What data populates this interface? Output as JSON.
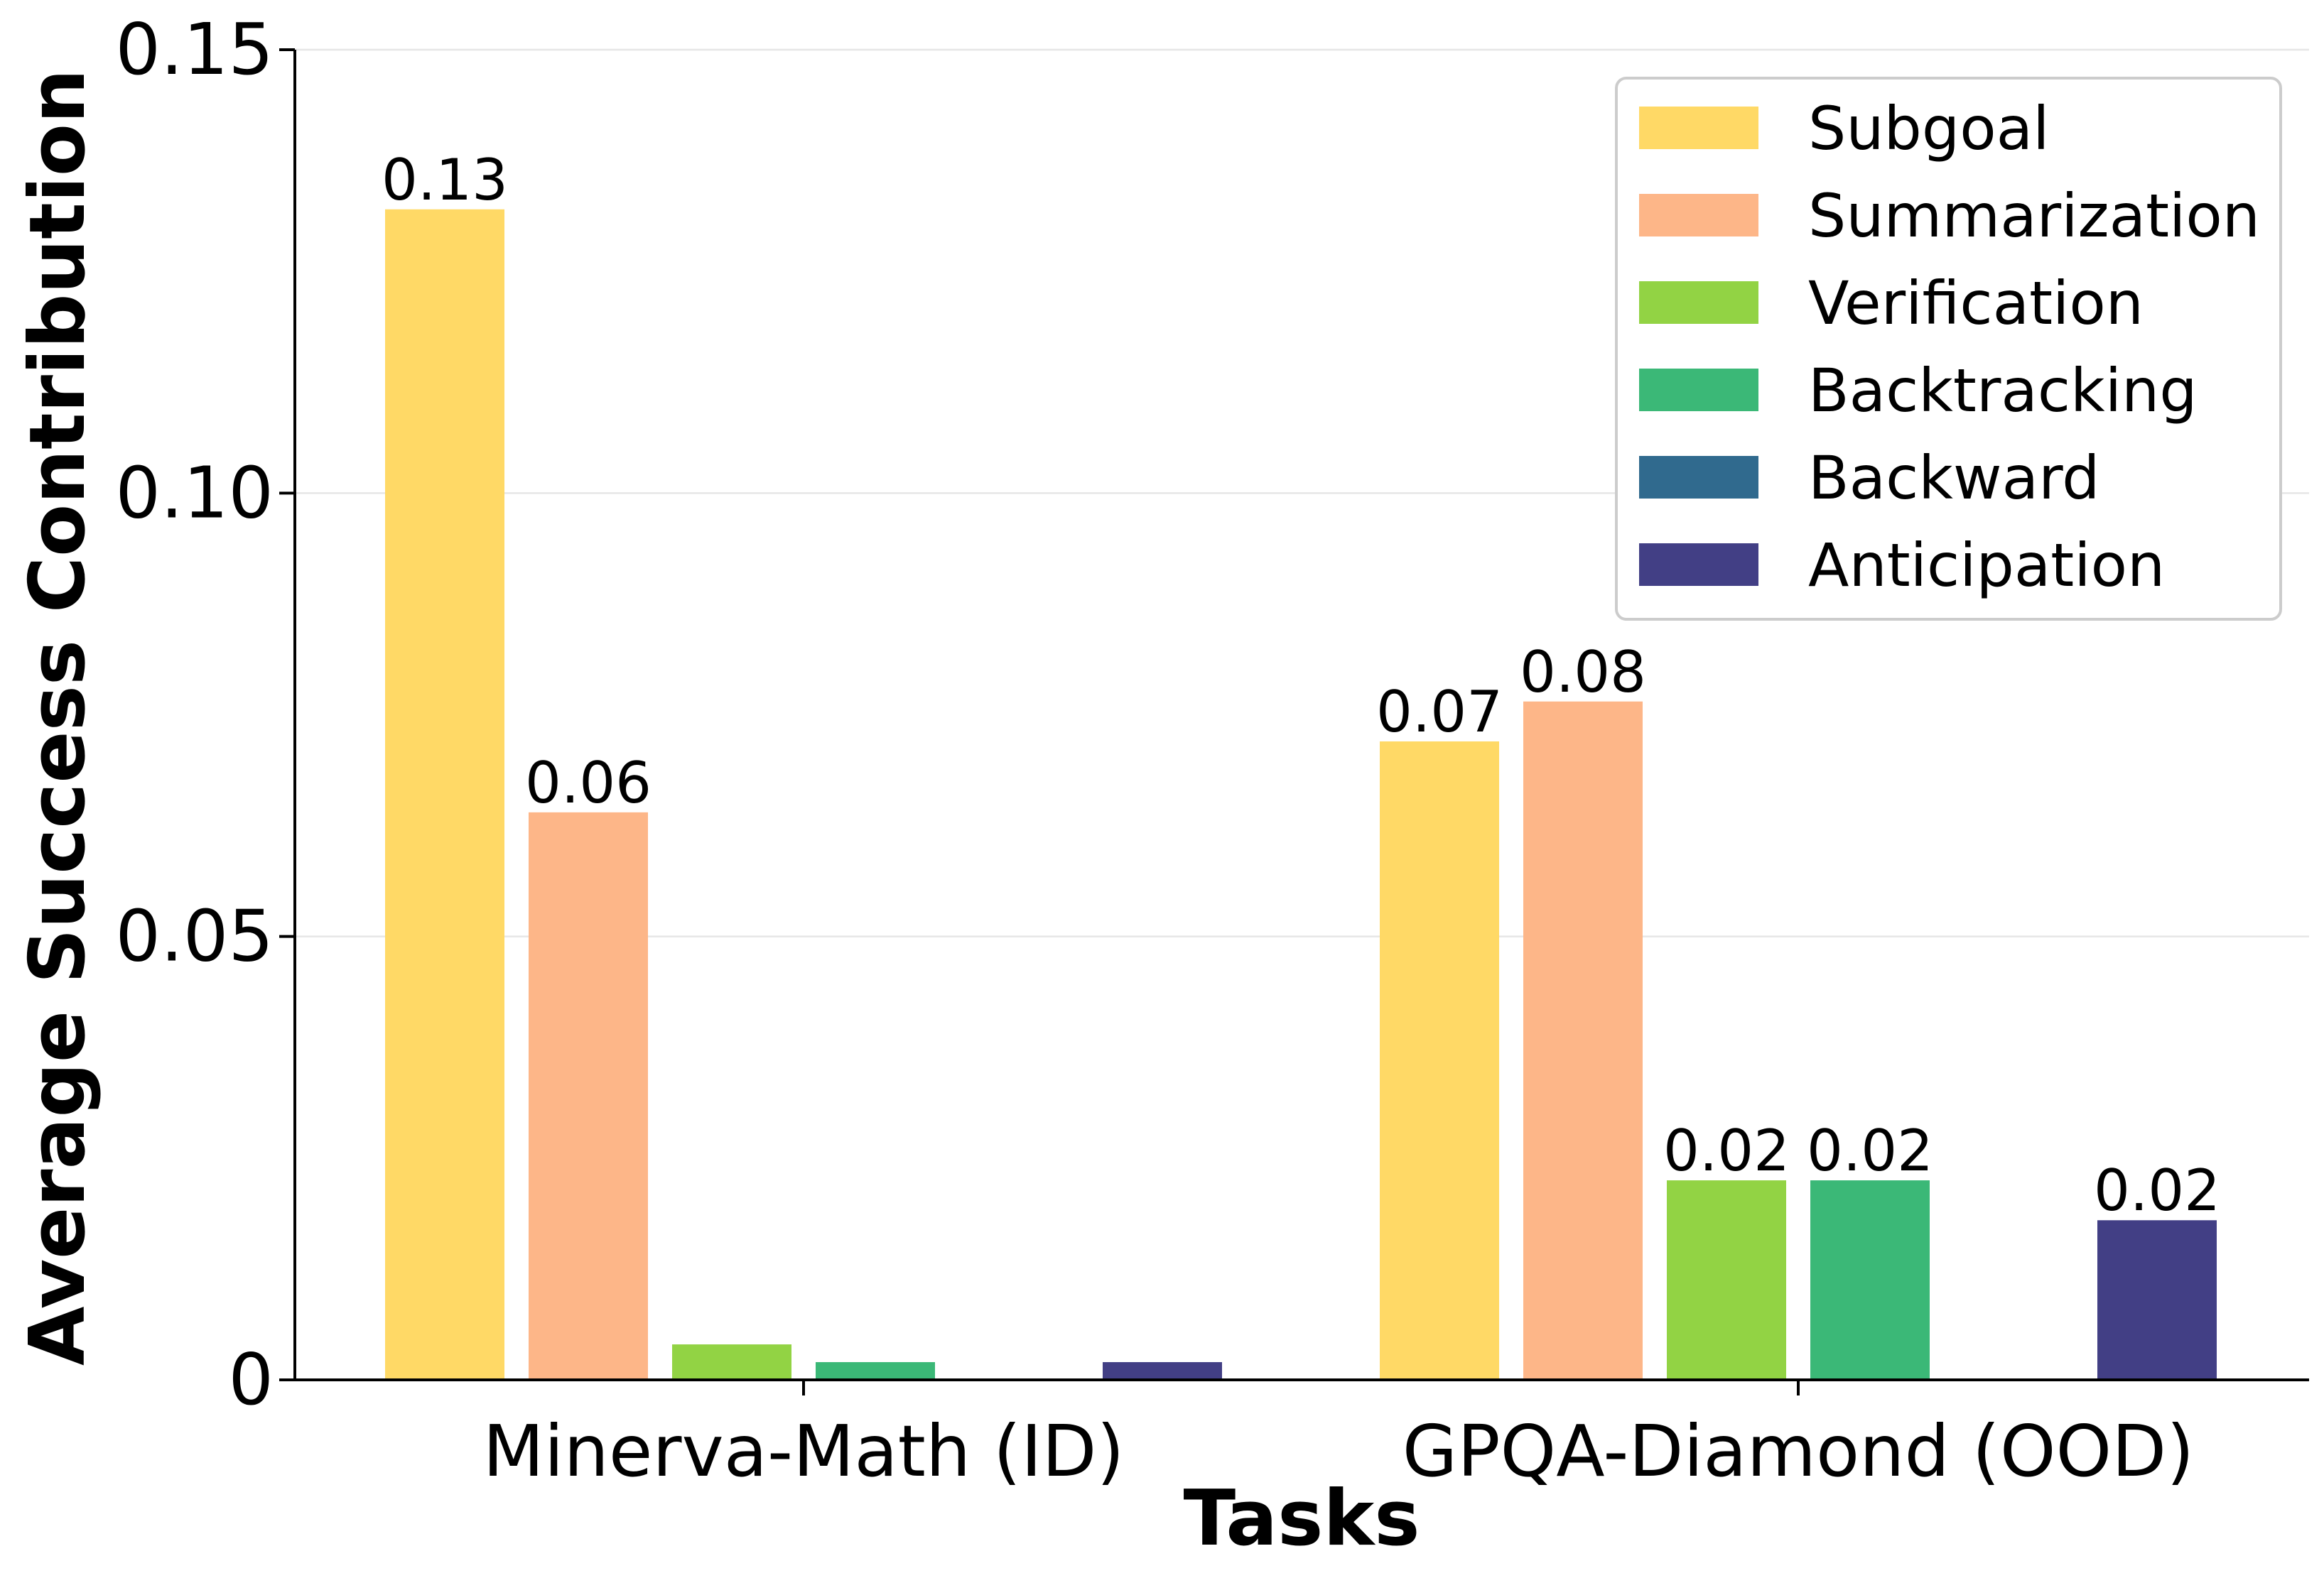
{
  "chart_data": {
    "type": "bar",
    "title": "",
    "xlabel": "Tasks",
    "ylabel": "Average Success Contribution",
    "ylim": [
      0,
      0.15
    ],
    "yticks": [
      0,
      0.05,
      0.1,
      0.15
    ],
    "ytick_labels": [
      "0",
      "0.05",
      "0.10",
      "0.15"
    ],
    "grid": "horizontal",
    "legend_position": "top-right",
    "categories": [
      "Minerva-Math (ID)",
      "GPQA-Diamond (OOD)"
    ],
    "series": [
      {
        "name": "Subgoal",
        "color": "#FFD966",
        "values": [
          0.132,
          0.072
        ],
        "labels": [
          "0.13",
          "0.07"
        ]
      },
      {
        "name": "Summarization",
        "color": "#FDB688",
        "values": [
          0.064,
          0.0765
        ],
        "labels": [
          "0.06",
          "0.08"
        ]
      },
      {
        "name": "Verification",
        "color": "#92D344",
        "values": [
          0.004,
          0.0225
        ],
        "labels": [
          "",
          "0.02"
        ]
      },
      {
        "name": "Backtracking",
        "color": "#3BB877",
        "values": [
          0.002,
          0.0225
        ],
        "labels": [
          "",
          "0.02"
        ]
      },
      {
        "name": "Backward",
        "color": "#306A8E",
        "values": [
          0,
          0
        ],
        "labels": [
          "",
          ""
        ]
      },
      {
        "name": "Anticipation",
        "color": "#423F85",
        "values": [
          0.002,
          0.018
        ],
        "labels": [
          "",
          "0.02"
        ]
      }
    ]
  }
}
